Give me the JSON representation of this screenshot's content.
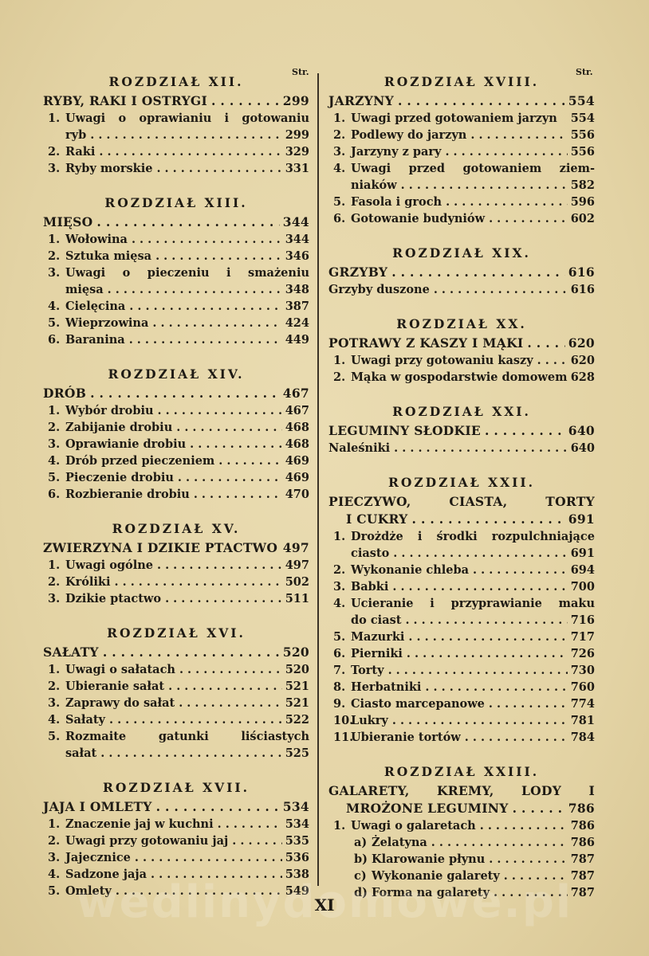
{
  "str_label": "Str.",
  "folio": "XI",
  "watermark": "wedlinydomowe.pl",
  "left": [
    {
      "heading": "ROZDZIAŁ XII.",
      "lines": [
        {
          "kind": "main",
          "text": "RYBY, RAKI I OSTRYGI",
          "page": "299"
        },
        {
          "kind": "sub",
          "num": "1.",
          "text": "Uwagi o oprawianiu i gotowaniu",
          "wrap": true
        },
        {
          "kind": "sub",
          "cont": true,
          "text": "ryb",
          "page": "299"
        },
        {
          "kind": "sub",
          "num": "2.",
          "text": "Raki",
          "page": "329"
        },
        {
          "kind": "sub",
          "num": "3.",
          "text": "Ryby morskie",
          "page": "331"
        }
      ]
    },
    {
      "heading": "ROZDZIAŁ XIII.",
      "lines": [
        {
          "kind": "main",
          "text": "MIĘSO",
          "page": "344"
        },
        {
          "kind": "sub",
          "num": "1.",
          "text": "Wołowina",
          "page": "344"
        },
        {
          "kind": "sub",
          "num": "2.",
          "text": "Sztuka mięsa",
          "page": "346"
        },
        {
          "kind": "sub",
          "num": "3.",
          "text": "Uwagi o pieczeniu i smażeniu",
          "wrap": true
        },
        {
          "kind": "sub",
          "cont": true,
          "text": "mięsa",
          "page": "348"
        },
        {
          "kind": "sub",
          "num": "4.",
          "text": "Cielęcina",
          "page": "387"
        },
        {
          "kind": "sub",
          "num": "5.",
          "text": "Wieprzowina",
          "page": "424"
        },
        {
          "kind": "sub",
          "num": "6.",
          "text": "Baranina",
          "page": "449"
        }
      ]
    },
    {
      "heading": "ROZDZIAŁ XIV.",
      "lines": [
        {
          "kind": "main",
          "text": "DRÓB",
          "page": "467"
        },
        {
          "kind": "sub",
          "num": "1.",
          "text": "Wybór drobiu",
          "page": "467"
        },
        {
          "kind": "sub",
          "num": "2.",
          "text": "Zabijanie drobiu",
          "page": "468"
        },
        {
          "kind": "sub",
          "num": "3.",
          "text": "Oprawianie drobiu",
          "page": "468"
        },
        {
          "kind": "sub",
          "num": "4.",
          "text": "Drób przed pieczeniem",
          "page": "469"
        },
        {
          "kind": "sub",
          "num": "5.",
          "text": "Pieczenie drobiu",
          "page": "469"
        },
        {
          "kind": "sub",
          "num": "6.",
          "text": "Rozbieranie drobiu",
          "page": "470"
        }
      ]
    },
    {
      "heading": "ROZDZIAŁ XV.",
      "lines": [
        {
          "kind": "main",
          "text": "ZWIERZYNA I DZIKIE PTACTWO",
          "page": "497",
          "nodots": true
        },
        {
          "kind": "sub",
          "num": "1.",
          "text": "Uwagi ogólne",
          "page": "497"
        },
        {
          "kind": "sub",
          "num": "2.",
          "text": "Króliki",
          "page": "502"
        },
        {
          "kind": "sub",
          "num": "3.",
          "text": "Dzikie ptactwo",
          "page": "511"
        }
      ]
    },
    {
      "heading": "ROZDZIAŁ XVI.",
      "lines": [
        {
          "kind": "main",
          "text": "SAŁATY",
          "page": "520"
        },
        {
          "kind": "sub",
          "num": "1.",
          "text": "Uwagi o sałatach",
          "page": "520"
        },
        {
          "kind": "sub",
          "num": "2.",
          "text": "Ubieranie sałat",
          "page": "521"
        },
        {
          "kind": "sub",
          "num": "3.",
          "text": "Zaprawy do sałat",
          "page": "521"
        },
        {
          "kind": "sub",
          "num": "4.",
          "text": "Sałaty",
          "page": "522"
        },
        {
          "kind": "sub",
          "num": "5.",
          "text": "Rozmaite gatunki liściastych",
          "wrap": true
        },
        {
          "kind": "sub",
          "cont": true,
          "text": "sałat",
          "page": "525"
        }
      ]
    },
    {
      "heading": "ROZDZIAŁ XVII.",
      "lines": [
        {
          "kind": "main",
          "text": "JAJA I OMLETY",
          "page": "534"
        },
        {
          "kind": "sub",
          "num": "1.",
          "text": "Znaczenie jaj w kuchni",
          "page": "534"
        },
        {
          "kind": "sub",
          "num": "2.",
          "text": "Uwagi przy gotowaniu jaj",
          "page": "535"
        },
        {
          "kind": "sub",
          "num": "3.",
          "text": "Jajecznice",
          "page": "536"
        },
        {
          "kind": "sub",
          "num": "4.",
          "text": "Sadzone jaja",
          "page": "538"
        },
        {
          "kind": "sub",
          "num": "5.",
          "text": "Omlety",
          "page": "549"
        }
      ]
    }
  ],
  "right": [
    {
      "heading": "ROZDZIAŁ XVIII.",
      "lines": [
        {
          "kind": "main",
          "text": "JARZYNY",
          "page": "554"
        },
        {
          "kind": "sub",
          "num": "1.",
          "text": "Uwagi przed gotowaniem jarzyn",
          "page": "554",
          "nodots": true
        },
        {
          "kind": "sub",
          "num": "2.",
          "text": "Podlewy do jarzyn",
          "page": "556"
        },
        {
          "kind": "sub",
          "num": "3.",
          "text": "Jarzyny z pary",
          "page": "556"
        },
        {
          "kind": "sub",
          "num": "4.",
          "text": "Uwagi przed gotowaniem ziem-",
          "wrap": true
        },
        {
          "kind": "sub",
          "cont": true,
          "text": "niaków",
          "page": "582"
        },
        {
          "kind": "sub",
          "num": "5.",
          "text": "Fasola i groch",
          "page": "596"
        },
        {
          "kind": "sub",
          "num": "6.",
          "text": "Gotowanie budyniów",
          "page": "602"
        }
      ]
    },
    {
      "heading": "ROZDZIAŁ XIX.",
      "lines": [
        {
          "kind": "main",
          "text": "GRZYBY",
          "page": "616"
        },
        {
          "kind": "plain",
          "text": "Grzyby duszone",
          "page": "616"
        }
      ]
    },
    {
      "heading": "ROZDZIAŁ XX.",
      "lines": [
        {
          "kind": "main",
          "text": "POTRAWY Z KASZY I MĄKI",
          "page": "620"
        },
        {
          "kind": "sub",
          "num": "1.",
          "text": "Uwagi przy gotowaniu kaszy",
          "page": "620"
        },
        {
          "kind": "sub",
          "num": "2.",
          "text": "Mąka w gospodarstwie domowem",
          "page": "628",
          "nodots": true
        }
      ]
    },
    {
      "heading": "ROZDZIAŁ XXI.",
      "lines": [
        {
          "kind": "main",
          "text": "LEGUMINY SŁODKIE",
          "page": "640"
        },
        {
          "kind": "plain",
          "text": "Naleśniki",
          "page": "640"
        }
      ]
    },
    {
      "heading": "ROZDZIAŁ XXII.",
      "lines": [
        {
          "kind": "main",
          "text": "PIECZYWO, CIASTA, TORTY",
          "wrap": true
        },
        {
          "kind": "main",
          "cont": true,
          "text": "I CUKRY",
          "page": "691"
        },
        {
          "kind": "sub",
          "num": "1.",
          "text": "Drożdże i środki rozpulchniające",
          "wrap": true
        },
        {
          "kind": "sub",
          "cont": true,
          "text": "ciasto",
          "page": "691"
        },
        {
          "kind": "sub",
          "num": "2.",
          "text": "Wykonanie chleba",
          "page": "694"
        },
        {
          "kind": "sub",
          "num": "3.",
          "text": "Babki",
          "page": "700"
        },
        {
          "kind": "sub",
          "num": "4.",
          "text": "Ucieranie i przyprawianie maku",
          "wrap": true
        },
        {
          "kind": "sub",
          "cont": true,
          "text": "do ciast",
          "page": "716"
        },
        {
          "kind": "sub",
          "num": "5.",
          "text": "Mazurki",
          "page": "717"
        },
        {
          "kind": "sub",
          "num": "6.",
          "text": "Pierniki",
          "page": "726"
        },
        {
          "kind": "sub",
          "num": "7.",
          "text": "Torty",
          "page": "730"
        },
        {
          "kind": "sub",
          "num": "8.",
          "text": "Herbatniki",
          "page": "760"
        },
        {
          "kind": "sub",
          "num": "9.",
          "text": "Ciasto marcepanowe",
          "page": "774"
        },
        {
          "kind": "sub",
          "num": "10.",
          "text": "Lukry",
          "page": "781"
        },
        {
          "kind": "sub",
          "num": "11.",
          "text": "Ubieranie tortów",
          "page": "784"
        }
      ]
    },
    {
      "heading": "ROZDZIAŁ XXIII.",
      "lines": [
        {
          "kind": "main",
          "text": "GALARETY, KREMY, LODY I",
          "wrap": true
        },
        {
          "kind": "main",
          "cont": true,
          "text": "MROŻONE LEGUMINY",
          "page": "786"
        },
        {
          "kind": "sub",
          "num": "1.",
          "text": "Uwagi o galaretach",
          "page": "786"
        },
        {
          "kind": "subsub",
          "num": "a)",
          "text": "Żelatyna",
          "page": "786"
        },
        {
          "kind": "subsub",
          "num": "b)",
          "text": "Klarowanie płynu",
          "page": "787"
        },
        {
          "kind": "subsub",
          "num": "c)",
          "text": "Wykonanie galarety",
          "page": "787"
        },
        {
          "kind": "subsub",
          "num": "d)",
          "text": "Forma na galarety",
          "page": "787"
        }
      ]
    }
  ]
}
